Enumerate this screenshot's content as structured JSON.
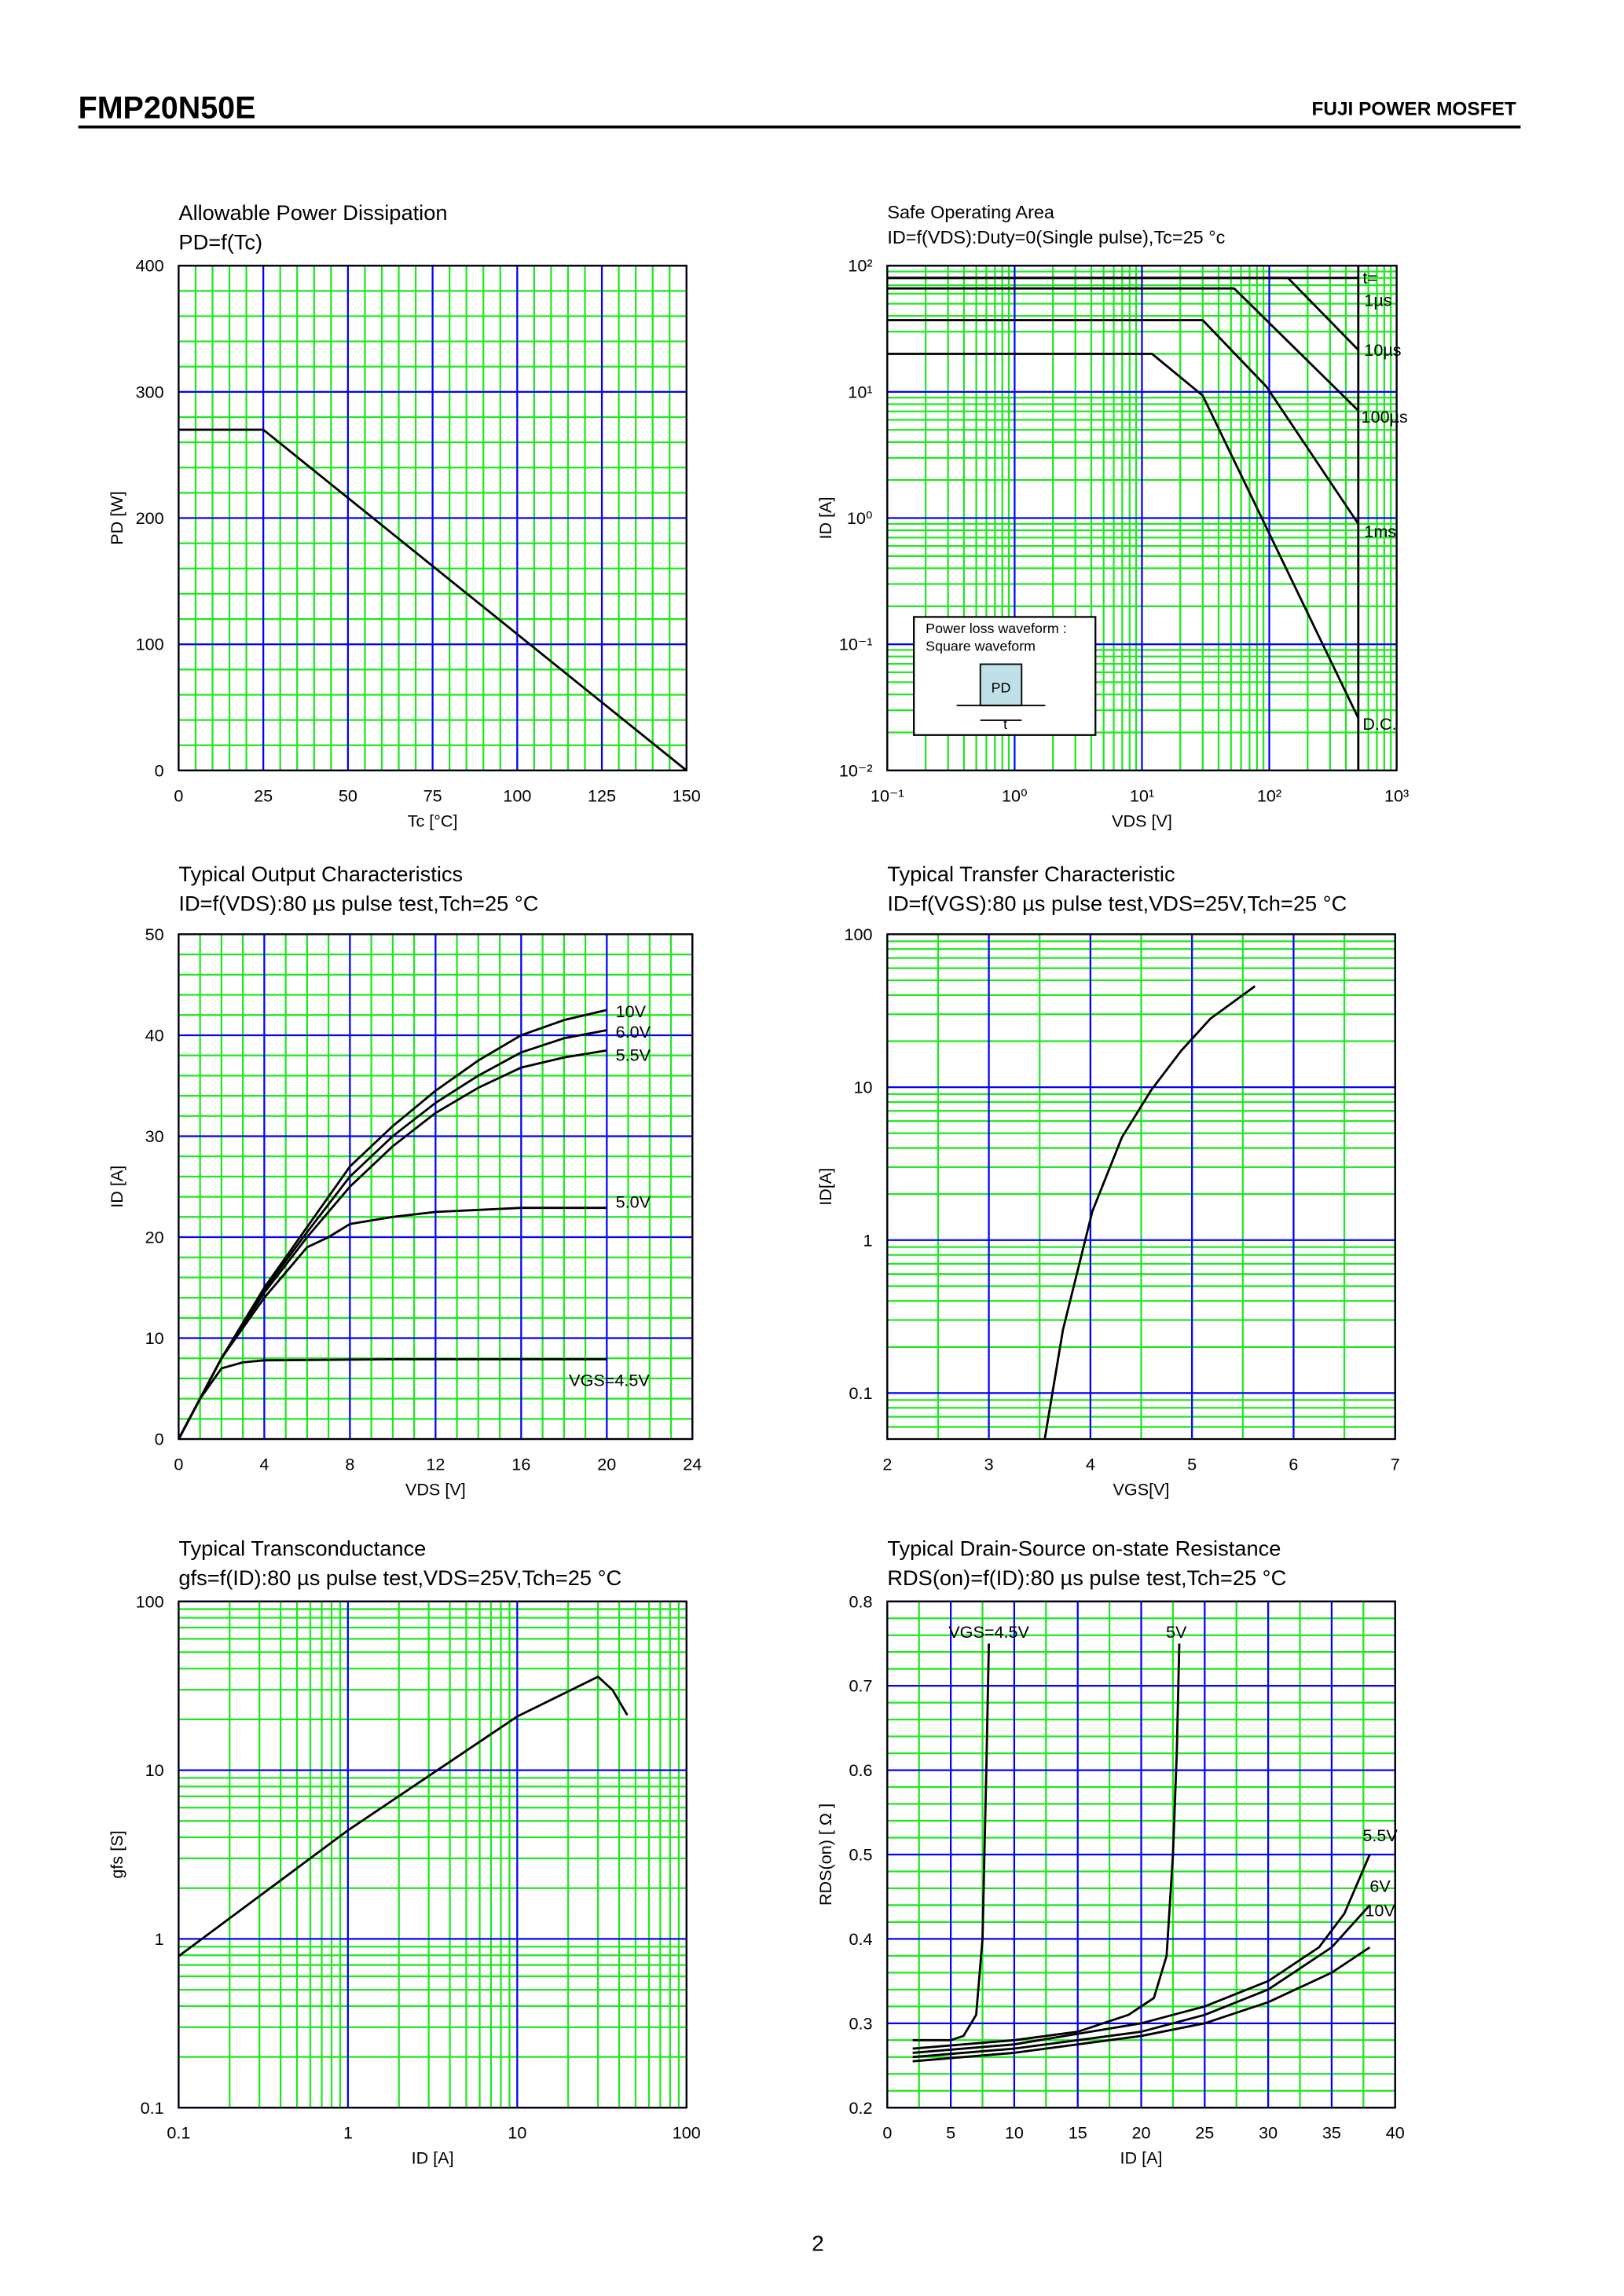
{
  "header": {
    "title": "FMP20N50E",
    "brand": "FUJI POWER MOSFET"
  },
  "page_number": "2",
  "chart_data": [
    {
      "type": "line",
      "title": "Allowable Power Dissipation",
      "subtitle": "PD=f(Tc)",
      "xlabel": "Tc [°C]",
      "ylabel": "PD [W]",
      "xscale": "linear",
      "yscale": "linear",
      "xlim": [
        0,
        150
      ],
      "ylim": [
        0,
        400
      ],
      "xticks": [
        0,
        25,
        50,
        75,
        100,
        125,
        150
      ],
      "yticks": [
        0,
        100,
        200,
        300,
        400
      ],
      "minor_x": 5,
      "minor_y": 5,
      "major_grid_color": "#0000ff",
      "minor_grid_color": "#22e622",
      "series": [
        {
          "color": "#000000",
          "x": [
            0,
            25,
            150
          ],
          "values": [
            270,
            270,
            0
          ]
        }
      ]
    },
    {
      "type": "line",
      "title": "Safe Operating Area",
      "subtitle": "ID=f(VDS):Duty=0(Single pulse),Tc=25 °c",
      "xlabel": "VDS [V]",
      "ylabel": "ID [A]",
      "xscale": "log",
      "yscale": "log",
      "xlim": [
        0.1,
        1000
      ],
      "ylim": [
        0.01,
        100
      ],
      "xticks": [
        {
          "value": 0.1,
          "label": "10⁻¹"
        },
        {
          "value": 1,
          "label": "10⁰"
        },
        {
          "value": 10,
          "label": "10¹"
        },
        {
          "value": 100,
          "label": "10²"
        },
        {
          "value": 1000,
          "label": "10³"
        }
      ],
      "yticks": [
        {
          "value": 0.01,
          "label": "10⁻²"
        },
        {
          "value": 0.1,
          "label": "10⁻¹"
        },
        {
          "value": 1,
          "label": "10⁰"
        },
        {
          "value": 10,
          "label": "10¹"
        },
        {
          "value": 100,
          "label": "10²"
        }
      ],
      "major_grid_color": "#0000ff",
      "minor_grid_color": "#22e622",
      "annotations": [
        "t="
      ],
      "inset": {
        "lines": [
          "Power loss waveform :",
          "Square waveform"
        ],
        "pd": "PD",
        "t": "t"
      },
      "series": [
        {
          "name": "1µs",
          "color": "#000000",
          "x": [
            0.1,
            500
          ],
          "values": [
            80,
            80
          ]
        },
        {
          "name": "10µs",
          "color": "#000000",
          "x": [
            0.1,
            140,
            500
          ],
          "values": [
            80,
            80,
            21.5
          ]
        },
        {
          "name": "100µs",
          "color": "#000000",
          "x": [
            0.1,
            53,
            500
          ],
          "values": [
            66,
            66,
            7.1
          ]
        },
        {
          "name": "1ms",
          "color": "#000000",
          "x": [
            0.1,
            30,
            95,
            500
          ],
          "values": [
            37,
            37,
            11,
            0.9
          ]
        },
        {
          "name": "D.C.",
          "color": "#000000",
          "x": [
            0.1,
            12,
            30,
            500
          ],
          "values": [
            20,
            20,
            9.35,
            0.026
          ]
        },
        {
          "color": "#000000",
          "x": [
            500,
            500
          ],
          "values": [
            0.01,
            100
          ]
        }
      ]
    },
    {
      "type": "line",
      "title": "Typical Output Characteristics",
      "subtitle": "ID=f(VDS):80 µs pulse test,Tch=25 °C",
      "xlabel": "VDS [V]",
      "ylabel": "ID [A]",
      "xscale": "linear",
      "yscale": "linear",
      "xlim": [
        0,
        24
      ],
      "ylim": [
        0,
        50
      ],
      "xticks": [
        0,
        4,
        8,
        12,
        16,
        20,
        24
      ],
      "yticks": [
        0,
        10,
        20,
        30,
        40,
        50
      ],
      "minor_x": 4,
      "minor_y": 5,
      "major_grid_color": "#0000ff",
      "minor_grid_color": "#22e622",
      "series": [
        {
          "name": "10V",
          "color": "#000000",
          "x": [
            0,
            2,
            4,
            6,
            8,
            10,
            12,
            14,
            16,
            18,
            20
          ],
          "values": [
            0,
            8,
            15,
            21,
            27,
            31,
            34.5,
            37.5,
            40,
            41.5,
            42.5
          ]
        },
        {
          "name": "6.0V",
          "color": "#000000",
          "x": [
            0,
            2,
            4,
            6,
            8,
            10,
            12,
            14,
            16,
            18,
            20
          ],
          "values": [
            0,
            8,
            14.8,
            20.5,
            26,
            30,
            33.3,
            36,
            38.3,
            39.7,
            40.5
          ]
        },
        {
          "name": "5.5V",
          "color": "#000000",
          "x": [
            0,
            2,
            4,
            6,
            8,
            10,
            12,
            14,
            16,
            18,
            20
          ],
          "values": [
            0,
            8,
            14.5,
            20,
            25,
            29,
            32.3,
            34.8,
            36.8,
            37.8,
            38.5
          ]
        },
        {
          "name": "5.0V",
          "color": "#000000",
          "x": [
            0,
            2,
            4,
            6,
            7,
            8,
            10,
            12,
            14,
            16,
            20
          ],
          "values": [
            0,
            8,
            14,
            19,
            20,
            21.3,
            22,
            22.5,
            22.7,
            22.9,
            22.9
          ]
        },
        {
          "name": "VGS=4.5V",
          "color": "#000000",
          "x": [
            0,
            1,
            2,
            3,
            4,
            10,
            20
          ],
          "values": [
            0,
            4,
            7,
            7.6,
            7.8,
            7.9,
            7.9
          ]
        }
      ]
    },
    {
      "type": "line",
      "title": "Typical Transfer Characteristic",
      "subtitle": "ID=f(VGS):80 µs pulse test,VDS=25V,Tch=25 °C",
      "xlabel": "VGS[V]",
      "ylabel": "ID[A]",
      "xscale": "linear",
      "yscale": "log",
      "xlim": [
        2,
        7
      ],
      "ylim": [
        0.05,
        100
      ],
      "xticks": [
        2,
        3,
        4,
        5,
        6,
        7
      ],
      "yticks": [
        0.1,
        1,
        10,
        100
      ],
      "minor_x": 2,
      "major_grid_color": "#0000ff",
      "minor_grid_color": "#22e622",
      "series": [
        {
          "color": "#000000",
          "x": [
            3.55,
            3.73,
            4.02,
            4.31,
            4.6,
            4.89,
            5.18,
            5.62
          ],
          "values": [
            0.05,
            0.26,
            1.55,
            4.7,
            9.6,
            17.2,
            28,
            45.8
          ]
        }
      ]
    },
    {
      "type": "line",
      "title": "Typical Transconductance",
      "subtitle": "gfs=f(ID):80 µs pulse test,VDS=25V,Tch=25 °C",
      "xlabel": "ID [A]",
      "ylabel": "gfs [S]",
      "xscale": "log",
      "yscale": "log",
      "xlim": [
        0.1,
        100
      ],
      "ylim": [
        0.1,
        100
      ],
      "xticks": [
        0.1,
        1,
        10,
        100
      ],
      "yticks": [
        0.1,
        1,
        10,
        100
      ],
      "major_grid_color": "#0000ff",
      "minor_grid_color": "#22e622",
      "series": [
        {
          "color": "#000000",
          "x": [
            0.1,
            1,
            10,
            30,
            36.6,
            44.7
          ],
          "values": [
            0.79,
            4.4,
            20.8,
            35.8,
            29.8,
            21.2
          ]
        }
      ]
    },
    {
      "type": "line",
      "title": "Typical Drain-Source on-state Resistance",
      "subtitle": "RDS(on)=f(ID):80 µs pulse test,Tch=25 °C",
      "xlabel": "ID [A]",
      "ylabel": "RDS(on) [ Ω ]",
      "xscale": "linear",
      "yscale": "linear",
      "xlim": [
        0,
        40
      ],
      "ylim": [
        0.2,
        0.8
      ],
      "xticks": [
        0,
        5,
        10,
        15,
        20,
        25,
        30,
        35,
        40
      ],
      "yticks": [
        0.2,
        0.3,
        0.4,
        0.5,
        0.6,
        0.7,
        0.8
      ],
      "minor_x": 2,
      "minor_y": 5,
      "major_grid_color": "#0000ff",
      "minor_grid_color": "#22e622",
      "series": [
        {
          "name": "VGS=4.5V",
          "color": "#000000",
          "x": [
            2,
            5,
            6,
            7,
            7.5,
            7.8,
            8
          ],
          "values": [
            0.28,
            0.28,
            0.285,
            0.31,
            0.4,
            0.6,
            0.75
          ]
        },
        {
          "name": "5V",
          "color": "#000000",
          "x": [
            2,
            10,
            15,
            19,
            21,
            22,
            22.5,
            22.8,
            23
          ],
          "values": [
            0.27,
            0.28,
            0.29,
            0.31,
            0.33,
            0.38,
            0.5,
            0.62,
            0.75
          ]
        },
        {
          "name": "5.5V",
          "color": "#000000",
          "x": [
            2,
            10,
            20,
            25,
            30,
            34,
            36,
            38
          ],
          "values": [
            0.265,
            0.275,
            0.3,
            0.32,
            0.35,
            0.39,
            0.43,
            0.5
          ]
        },
        {
          "name": "6V",
          "color": "#000000",
          "x": [
            2,
            10,
            20,
            25,
            30,
            35,
            38
          ],
          "values": [
            0.26,
            0.27,
            0.29,
            0.31,
            0.34,
            0.39,
            0.44
          ]
        },
        {
          "name": "10V",
          "color": "#000000",
          "x": [
            2,
            10,
            20,
            25,
            30,
            35,
            38
          ],
          "values": [
            0.255,
            0.265,
            0.285,
            0.3,
            0.325,
            0.36,
            0.39
          ]
        }
      ]
    }
  ]
}
